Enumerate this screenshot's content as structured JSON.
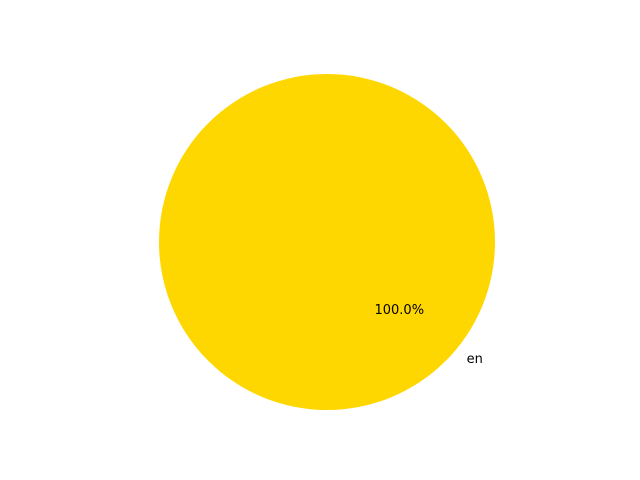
{
  "chart_data": {
    "type": "pie",
    "categories": [
      "en"
    ],
    "values": [
      100
    ],
    "percent_labels": [
      "100.0%"
    ],
    "colors": [
      "#ffd700"
    ]
  }
}
